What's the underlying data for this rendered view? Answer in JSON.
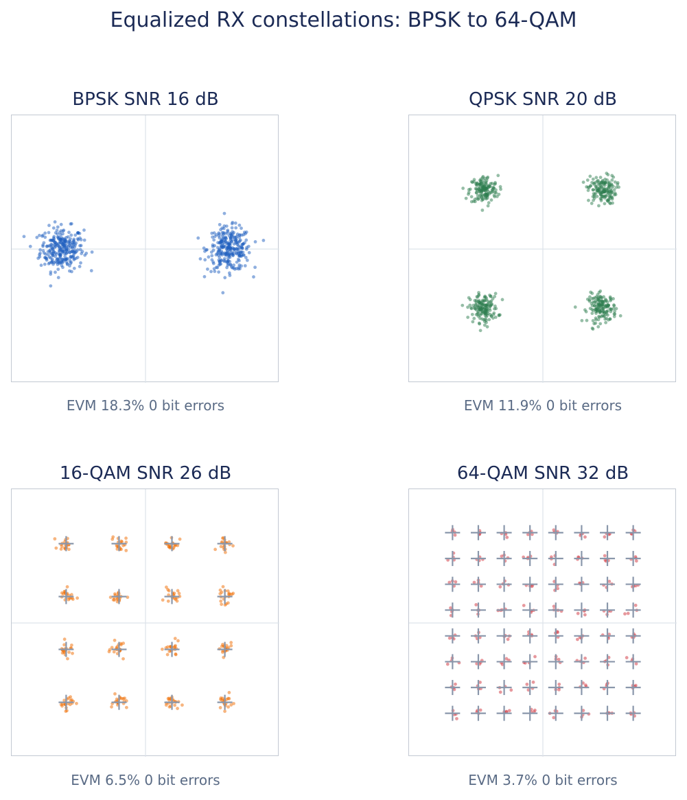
{
  "figure": {
    "title": "Equalized RX constellations: BPSK to 64-QAM"
  },
  "chart_data": [
    {
      "type": "scatter",
      "title": "BPSK   SNR 16 dB",
      "caption": "EVM 18.3%   0 bit errors",
      "modulation": "BPSK",
      "snr_db": 16,
      "evm_percent": 18.3,
      "bit_errors": 0,
      "xlim": [
        -1.6,
        1.6
      ],
      "ylim": [
        -1.6,
        1.6
      ],
      "ideal_points": [
        [
          -1,
          0
        ],
        [
          1,
          0
        ]
      ],
      "points_per_symbol": 280,
      "noise_sigma": 0.13,
      "show_ideal_markers": false,
      "color": "#1f5fbf",
      "axes_lines": true,
      "grid": false
    },
    {
      "type": "scatter",
      "title": "QPSK   SNR 20 dB",
      "caption": "EVM 11.9%   0 bit errors",
      "modulation": "QPSK",
      "snr_db": 20,
      "evm_percent": 11.9,
      "bit_errors": 0,
      "xlim": [
        -1.6,
        1.6
      ],
      "ylim": [
        -1.6,
        1.6
      ],
      "ideal_points": [
        [
          -0.7071,
          0.7071
        ],
        [
          0.7071,
          0.7071
        ],
        [
          -0.7071,
          -0.7071
        ],
        [
          0.7071,
          -0.7071
        ]
      ],
      "points_per_symbol": 150,
      "noise_sigma": 0.085,
      "show_ideal_markers": false,
      "color": "#2e7d4f",
      "axes_lines": true,
      "grid": false
    },
    {
      "type": "scatter",
      "title": "16-QAM   SNR 26 dB",
      "caption": "EVM 6.5%   0 bit errors",
      "modulation": "16-QAM",
      "snr_db": 26,
      "evm_percent": 6.5,
      "bit_errors": 0,
      "xlim": [
        -1.6,
        1.6
      ],
      "ylim": [
        -1.6,
        1.6
      ],
      "levels": [
        -0.9487,
        -0.3162,
        0.3162,
        0.9487
      ],
      "points_per_symbol": 20,
      "noise_sigma": 0.045,
      "show_ideal_markers": true,
      "color": "#ef6c00",
      "marker_color": "#8a97ab",
      "axes_lines": true,
      "grid": false
    },
    {
      "type": "scatter",
      "title": "64-QAM   SNR 32 dB",
      "caption": "EVM 3.7%   0 bit errors",
      "modulation": "64-QAM",
      "snr_db": 32,
      "evm_percent": 3.7,
      "bit_errors": 0,
      "xlim": [
        -1.6,
        1.6
      ],
      "ylim": [
        -1.6,
        1.6
      ],
      "levels": [
        -1.0801,
        -0.7715,
        -0.4629,
        -0.1543,
        0.1543,
        0.4629,
        0.7715,
        1.0801
      ],
      "points_per_symbol": 4,
      "noise_sigma": 0.03,
      "show_ideal_markers": true,
      "color": "#d0323c",
      "marker_color": "#8a97ab",
      "axes_lines": true,
      "grid": false
    }
  ]
}
